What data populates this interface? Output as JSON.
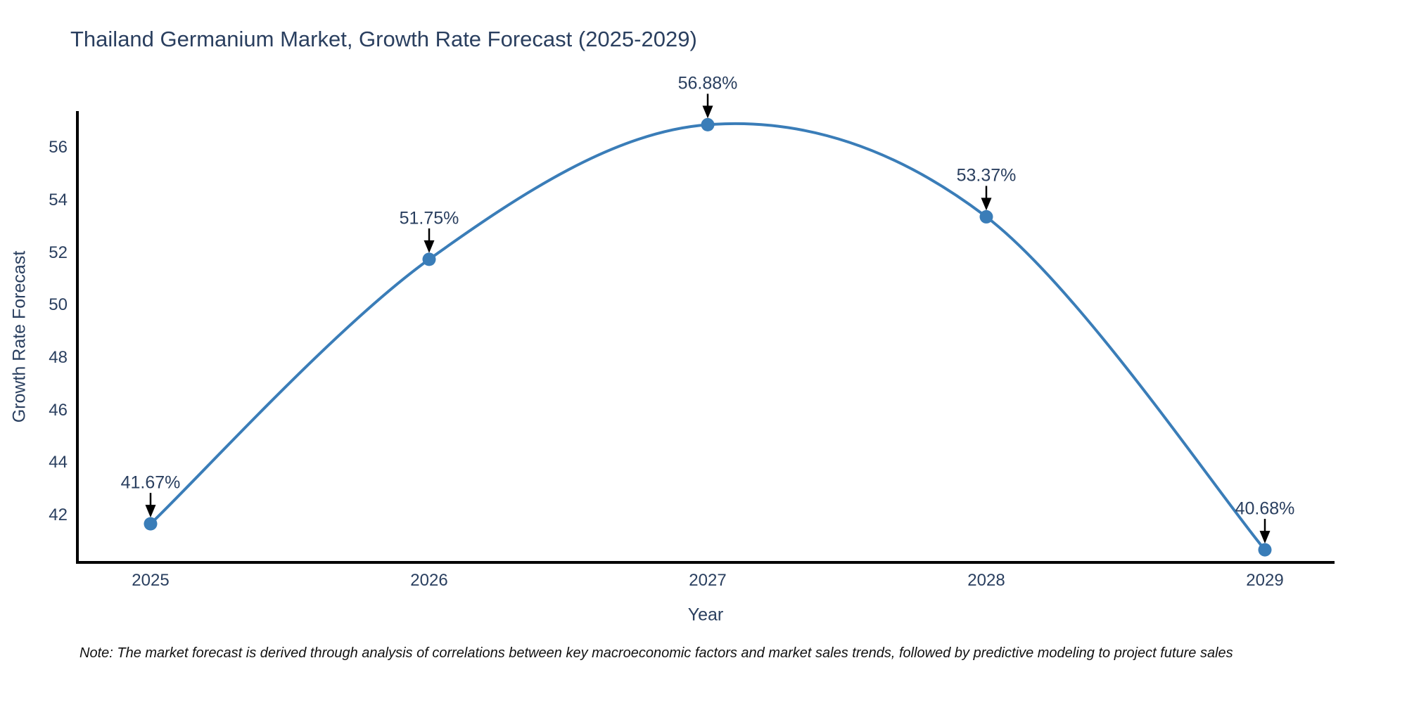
{
  "chart_data": {
    "type": "line",
    "title": "Thailand Germanium Market, Growth Rate Forecast (2025-2029)",
    "xlabel": "Year",
    "ylabel": "Growth Rate Forecast",
    "x": [
      2025,
      2026,
      2027,
      2028,
      2029
    ],
    "xtick_labels": [
      "2025",
      "2026",
      "2027",
      "2028",
      "2029"
    ],
    "series": [
      {
        "name": "Growth Rate Forecast",
        "values": [
          41.67,
          51.75,
          56.88,
          53.37,
          40.68
        ]
      }
    ],
    "point_labels": [
      "41.67%",
      "51.75%",
      "56.88%",
      "53.37%",
      "40.68%"
    ],
    "yticks": [
      42,
      44,
      46,
      48,
      50,
      52,
      54,
      56
    ],
    "ylim": [
      40.2,
      57.4
    ],
    "grid": false,
    "legend": false,
    "curve": "spline",
    "marker_style": "circle"
  },
  "note": "Note: The market forecast is derived through analysis of correlations between key macroeconomic factors and market sales trends, followed by predictive modeling to project future sales",
  "colors": {
    "line": "#3a7db8",
    "marker": "#3a7db8",
    "arrow": "#000000",
    "axis": "#000000",
    "text": "#2a3f5f",
    "note_text": "#111111",
    "background": "#ffffff"
  }
}
